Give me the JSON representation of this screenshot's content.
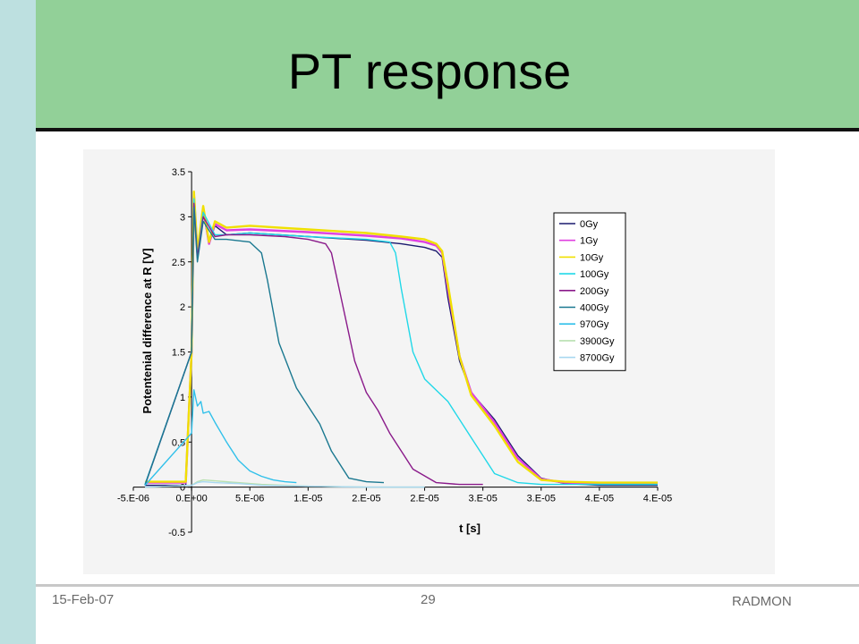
{
  "slide": {
    "title": "PT response",
    "footer_date": "15-Feb-07",
    "footer_page": "29",
    "footer_org": "RADMON"
  },
  "colors": {
    "left_bar": "#bde0e0",
    "title_band": "#92d098",
    "chart_panel": "#f4f4f4"
  },
  "chart_data": {
    "type": "line",
    "title": "",
    "xlabel": "t [s]",
    "ylabel": "Potentenial difference at R [V]",
    "xlim": [
      -5e-06,
      4e-05
    ],
    "ylim": [
      -0.5,
      3.5
    ],
    "x_tick_labels": [
      "-5.E-06",
      "0.E+00",
      "5.E-06",
      "1.E-05",
      "2.E-05",
      "2.E-05",
      "3.E-05",
      "3.E-05",
      "4.E-05",
      "4.E-05"
    ],
    "y_tick_labels": [
      "-0.5",
      "0",
      "0.5",
      "1",
      "1.5",
      "2",
      "2.5",
      "3",
      "3.5"
    ],
    "legend_position": "right",
    "series": [
      {
        "name": "0Gy",
        "color": "#1a1a6e",
        "x": [
          -4e-06,
          -5e-07,
          0,
          2e-07,
          5e-07,
          1e-06,
          1.5e-06,
          2e-06,
          3e-06,
          5e-06,
          1e-05,
          1.5e-05,
          1.8e-05,
          2e-05,
          2.1e-05,
          2.15e-05,
          2.2e-05,
          2.3e-05,
          2.4e-05,
          2.6e-05,
          2.8e-05,
          3e-05,
          3.2e-05,
          3.5e-05,
          4e-05
        ],
        "y": [
          0.02,
          0.02,
          1.5,
          3.2,
          2.6,
          3.05,
          2.7,
          2.9,
          2.8,
          2.82,
          2.78,
          2.74,
          2.7,
          2.66,
          2.62,
          2.55,
          2.1,
          1.4,
          1.05,
          0.75,
          0.35,
          0.1,
          0.04,
          0.02,
          0.02
        ]
      },
      {
        "name": "1Gy",
        "color": "#e040e0",
        "x": [
          -4e-06,
          -5e-07,
          0,
          2e-07,
          5e-07,
          1e-06,
          1.5e-06,
          2e-06,
          3e-06,
          5e-06,
          1e-05,
          1.5e-05,
          1.8e-05,
          2e-05,
          2.1e-05,
          2.15e-05,
          2.2e-05,
          2.3e-05,
          2.4e-05,
          2.6e-05,
          2.8e-05,
          3e-05,
          3.2e-05,
          3.5e-05,
          4e-05
        ],
        "y": [
          0.05,
          0.05,
          1.5,
          3.25,
          2.6,
          3.1,
          2.7,
          2.92,
          2.85,
          2.86,
          2.83,
          2.79,
          2.76,
          2.72,
          2.68,
          2.6,
          2.2,
          1.45,
          1.05,
          0.72,
          0.32,
          0.09,
          0.05,
          0.04,
          0.04
        ]
      },
      {
        "name": "10Gy",
        "color": "#f0e000",
        "x": [
          -4e-06,
          -5e-07,
          0,
          2e-07,
          5e-07,
          1e-06,
          1.5e-06,
          2e-06,
          3e-06,
          5e-06,
          1e-05,
          1.5e-05,
          1.8e-05,
          2e-05,
          2.1e-05,
          2.15e-05,
          2.2e-05,
          2.3e-05,
          2.4e-05,
          2.6e-05,
          2.8e-05,
          3e-05,
          3.2e-05,
          3.5e-05,
          4e-05
        ],
        "y": [
          0.06,
          0.06,
          1.5,
          3.28,
          2.62,
          3.12,
          2.72,
          2.95,
          2.88,
          2.9,
          2.86,
          2.82,
          2.78,
          2.75,
          2.7,
          2.62,
          2.25,
          1.45,
          1.02,
          0.68,
          0.28,
          0.08,
          0.06,
          0.05,
          0.05
        ]
      },
      {
        "name": "100Gy",
        "color": "#20d8e8",
        "x": [
          -4e-06,
          0,
          2e-07,
          5e-07,
          1e-06,
          2e-06,
          3e-06,
          5e-06,
          1e-05,
          1.5e-05,
          1.7e-05,
          1.75e-05,
          1.8e-05,
          1.9e-05,
          2e-05,
          2.2e-05,
          2.4e-05,
          2.6e-05,
          2.8e-05,
          3e-05,
          3.5e-05,
          4e-05
        ],
        "y": [
          0.03,
          1.5,
          3.2,
          2.55,
          3.05,
          2.8,
          2.8,
          2.82,
          2.78,
          2.75,
          2.72,
          2.6,
          2.2,
          1.5,
          1.2,
          0.95,
          0.55,
          0.15,
          0.05,
          0.03,
          0.03,
          0.03
        ]
      },
      {
        "name": "200Gy",
        "color": "#8a1a8a",
        "x": [
          -4e-06,
          0,
          2e-07,
          5e-07,
          1e-06,
          2e-06,
          3e-06,
          5e-06,
          8e-06,
          1e-05,
          1.15e-05,
          1.2e-05,
          1.3e-05,
          1.4e-05,
          1.5e-05,
          1.6e-05,
          1.7e-05,
          1.9e-05,
          2.1e-05,
          2.3e-05,
          2.5e-05
        ],
        "y": [
          0.02,
          1.5,
          3.15,
          2.55,
          3.0,
          2.78,
          2.8,
          2.8,
          2.78,
          2.75,
          2.7,
          2.6,
          2.0,
          1.4,
          1.05,
          0.85,
          0.6,
          0.2,
          0.05,
          0.03,
          0.03
        ]
      },
      {
        "name": "400Gy",
        "color": "#1a7890",
        "x": [
          -4e-06,
          0,
          2e-07,
          5e-07,
          1e-06,
          2e-06,
          3e-06,
          5e-06,
          6e-06,
          6.5e-06,
          7.5e-06,
          9e-06,
          1e-05,
          1.1e-05,
          1.2e-05,
          1.35e-05,
          1.5e-05,
          1.65e-05
        ],
        "y": [
          0.02,
          1.5,
          3.1,
          2.5,
          2.95,
          2.75,
          2.75,
          2.72,
          2.6,
          2.3,
          1.6,
          1.1,
          0.9,
          0.7,
          0.4,
          0.1,
          0.06,
          0.05
        ]
      },
      {
        "name": "970Gy",
        "color": "#30c0ea",
        "x": [
          -4e-06,
          0,
          2e-07,
          5e-07,
          8e-07,
          1e-06,
          1.5e-06,
          2e-06,
          3e-06,
          4e-06,
          5e-06,
          6e-06,
          7e-06,
          8e-06,
          9e-06
        ],
        "y": [
          0.02,
          0.6,
          1.08,
          0.9,
          0.95,
          0.82,
          0.84,
          0.72,
          0.5,
          0.3,
          0.18,
          0.12,
          0.08,
          0.06,
          0.05
        ]
      },
      {
        "name": "3900Gy",
        "color": "#b8e0b0",
        "x": [
          -4e-06,
          0,
          5e-07,
          1e-06,
          2e-06,
          4e-06,
          6e-06,
          1e-05,
          1.5e-05,
          2e-05
        ],
        "y": [
          0.0,
          0.02,
          0.06,
          0.08,
          0.07,
          0.05,
          0.03,
          0.01,
          0.0,
          0.0
        ]
      },
      {
        "name": "8700Gy",
        "color": "#a8d8f0",
        "x": [
          -4e-06,
          0,
          5e-07,
          1e-06,
          2e-06,
          4e-06,
          6e-06,
          1e-05,
          1.5e-05,
          2e-05
        ],
        "y": [
          0.0,
          0.02,
          0.05,
          0.06,
          0.05,
          0.04,
          0.02,
          0.01,
          0.0,
          0.0
        ]
      }
    ]
  }
}
